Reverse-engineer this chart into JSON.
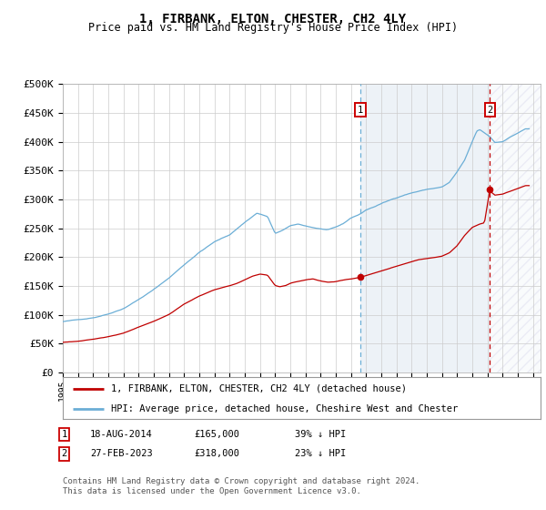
{
  "title": "1, FIRBANK, ELTON, CHESTER, CH2 4LY",
  "subtitle": "Price paid vs. HM Land Registry's House Price Index (HPI)",
  "legend_line1": "1, FIRBANK, ELTON, CHESTER, CH2 4LY (detached house)",
  "legend_line2": "HPI: Average price, detached house, Cheshire West and Chester",
  "footer1": "Contains HM Land Registry data © Crown copyright and database right 2024.",
  "footer2": "This data is licensed under the Open Government Licence v3.0.",
  "table_row1": [
    "1",
    "18-AUG-2014",
    "£165,000",
    "39% ↓ HPI"
  ],
  "table_row2": [
    "2",
    "27-FEB-2023",
    "£318,000",
    "23% ↓ HPI"
  ],
  "purchase1_date_num": 2014.63,
  "purchase1_price": 165000,
  "purchase2_date_num": 2023.16,
  "purchase2_price": 318000,
  "hpi_color": "#6baed6",
  "price_color": "#c00000",
  "vline1_color": "#6baed6",
  "vline2_color": "#c00000",
  "shade_color": "#dce6f1",
  "ylim": [
    0,
    500000
  ],
  "xlim_start": 1995.0,
  "xlim_end": 2026.5,
  "yticks": [
    0,
    50000,
    100000,
    150000,
    200000,
    250000,
    300000,
    350000,
    400000,
    450000,
    500000
  ],
  "xticks": [
    1995,
    1996,
    1997,
    1998,
    1999,
    2000,
    2001,
    2002,
    2003,
    2004,
    2005,
    2006,
    2007,
    2008,
    2009,
    2010,
    2011,
    2012,
    2013,
    2014,
    2015,
    2016,
    2017,
    2018,
    2019,
    2020,
    2021,
    2022,
    2023,
    2024,
    2025,
    2026
  ],
  "bg_color": "#ffffff",
  "grid_color": "#cccccc"
}
